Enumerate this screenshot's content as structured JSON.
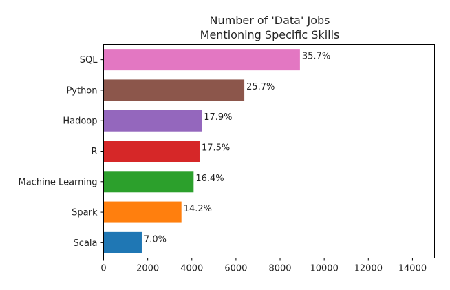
{
  "chart_data": {
    "type": "bar",
    "orientation": "horizontal",
    "title_lines": [
      "Number of 'Data' Jobs",
      "Mentioning Specific Skills"
    ],
    "xlabel": "",
    "ylabel": "",
    "xlim": [
      0,
      15000
    ],
    "xticks": [
      0,
      2000,
      4000,
      6000,
      8000,
      10000,
      12000,
      14000
    ],
    "grid": false,
    "categories": [
      "SQL",
      "Python",
      "Hadoop",
      "R",
      "Machine Learning",
      "Spark",
      "Scala"
    ],
    "values": [
      8900,
      6380,
      4450,
      4350,
      4080,
      3530,
      1730
    ],
    "labels": [
      "35.7%",
      "25.7%",
      "17.9%",
      "17.5%",
      "16.4%",
      "14.2%",
      "7.0%"
    ],
    "colors": [
      "#e377c2",
      "#8c564b",
      "#9467bd",
      "#d62728",
      "#2ca02c",
      "#ff7f0e",
      "#1f77b4"
    ]
  }
}
